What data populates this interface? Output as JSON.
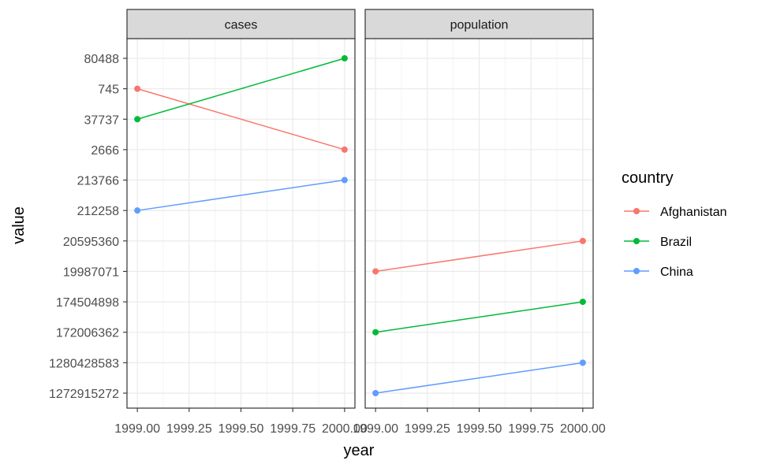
{
  "chart_data": {
    "type": "line",
    "facets": [
      "cases",
      "population"
    ],
    "xlabel": "year",
    "ylabel": "value",
    "x_ticks": [
      "1999.00",
      "1999.25",
      "1999.50",
      "1999.75",
      "2000.00"
    ],
    "x_tick_values": [
      1999.0,
      1999.25,
      1999.5,
      1999.75,
      2000.0
    ],
    "xlim": [
      1998.95,
      2000.05
    ],
    "y_categories": [
      "80488",
      "745",
      "37737",
      "2666",
      "213766",
      "212258",
      "20595360",
      "19987071",
      "174504898",
      "172006362",
      "1280428583",
      "1272915272"
    ],
    "legend": {
      "title": "country",
      "position": "right",
      "entries": [
        "Afghanistan",
        "Brazil",
        "China"
      ]
    },
    "grid": true,
    "series": [
      {
        "name": "Afghanistan",
        "color": "#F8766D",
        "facet": "cases",
        "x": [
          1999,
          2000
        ],
        "y": [
          "745",
          "2666"
        ]
      },
      {
        "name": "Brazil",
        "color": "#00BA38",
        "facet": "cases",
        "x": [
          1999,
          2000
        ],
        "y": [
          "37737",
          "80488"
        ]
      },
      {
        "name": "China",
        "color": "#619CFF",
        "facet": "cases",
        "x": [
          1999,
          2000
        ],
        "y": [
          "212258",
          "213766"
        ]
      },
      {
        "name": "Afghanistan",
        "color": "#F8766D",
        "facet": "population",
        "x": [
          1999,
          2000
        ],
        "y": [
          "19987071",
          "20595360"
        ]
      },
      {
        "name": "Brazil",
        "color": "#00BA38",
        "facet": "population",
        "x": [
          1999,
          2000
        ],
        "y": [
          "172006362",
          "174504898"
        ]
      },
      {
        "name": "China",
        "color": "#619CFF",
        "facet": "population",
        "x": [
          1999,
          2000
        ],
        "y": [
          "1272915272",
          "1280428583"
        ]
      }
    ]
  }
}
